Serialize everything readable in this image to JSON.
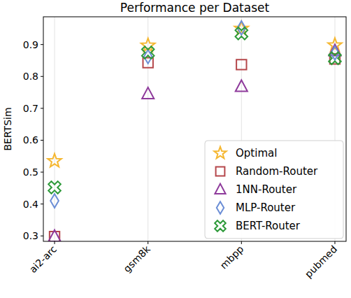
{
  "chart_data": {
    "type": "scatter",
    "title": "Performance per Dataset",
    "y_label": "BERTSim",
    "categories": [
      "ai2-arc",
      "gsm8k",
      "mbpp",
      "pubmed"
    ],
    "ylim": [
      0.283,
      0.987
    ],
    "yticks": [
      0.3,
      0.4,
      0.5,
      0.6,
      0.7,
      0.8,
      0.9
    ],
    "grid": true,
    "legend": "lower right",
    "series": [
      {
        "name": "Optimal",
        "color": "#f5b731",
        "marker": "star",
        "values": [
          0.535,
          0.897,
          0.95,
          0.898
        ]
      },
      {
        "name": "Random-Router",
        "color": "#b5474b",
        "marker": "square",
        "values": [
          0.298,
          0.843,
          0.837,
          0.855
        ]
      },
      {
        "name": "1NN-Router",
        "color": "#8e3a9b",
        "marker": "triangle",
        "values": [
          0.298,
          0.745,
          0.768,
          0.88
        ]
      },
      {
        "name": "MLP-Router",
        "color": "#6b8ed6",
        "marker": "diamond",
        "values": [
          0.41,
          0.862,
          0.952,
          0.873
        ]
      },
      {
        "name": "BERT-Router",
        "color": "#2e9a3a",
        "marker": "x",
        "values": [
          0.452,
          0.875,
          0.935,
          0.857
        ]
      }
    ]
  }
}
